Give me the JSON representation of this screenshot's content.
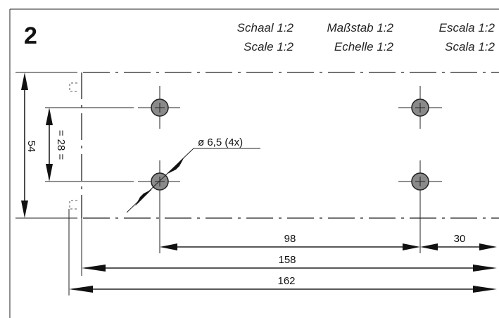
{
  "step_number": "2",
  "scales": [
    {
      "id": "nl",
      "text": "Schaal 1:2"
    },
    {
      "id": "de",
      "text": "Maßstab 1:2"
    },
    {
      "id": "es",
      "text": "Escala 1:2"
    },
    {
      "id": "en",
      "text": "Scale 1:2"
    },
    {
      "id": "fr",
      "text": "Echelle 1:2"
    },
    {
      "id": "it",
      "text": "Scala 1:2"
    }
  ],
  "dimensions": {
    "height_total": "54",
    "hole_spacing_vertical": "= 28 =",
    "hole_diameter": "ø 6,5  (4x)",
    "hole_spacing_horizontal": "98",
    "edge_offset": "30",
    "length_inner": "158",
    "length_outer": "162"
  },
  "colors": {
    "hole_fill": "#8a8a8a",
    "line": "#222222"
  }
}
